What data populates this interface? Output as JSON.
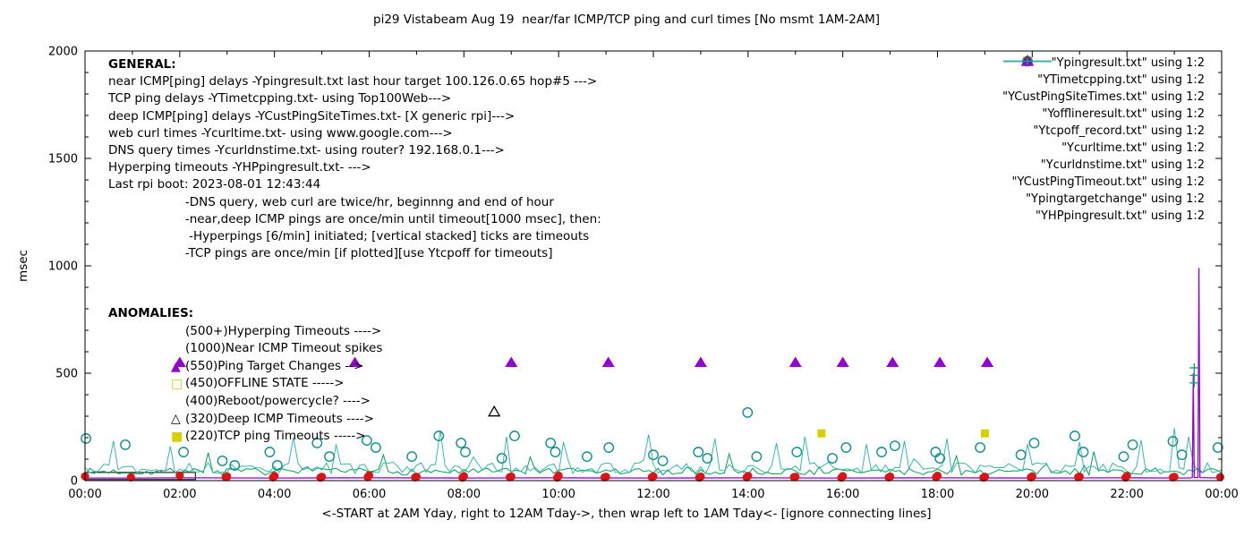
{
  "title": "pi29 Vistabeam Aug 19  near/far ICMP/TCP ping and curl times [No msmt 1AM-2AM]",
  "ylabel": "msec",
  "xlabel": "<-START at 2AM Yday, right to 12AM Tday->, then wrap left to 1AM Tday<- [ignore connecting lines]",
  "colors": {
    "near_icmp": "#9400d3",
    "tcp_ping": "#00a352",
    "deep_icmp": "#35b9b0",
    "curl": "#0f8f8f",
    "dns": "#dc1414",
    "yellow": "#d8cf00",
    "timeout_black": "#000000",
    "hyperping": "#12a096"
  },
  "legend": [
    {
      "label": "\"Ypingresult.txt\" using 1:2",
      "sample": "line",
      "color": "#9400d3"
    },
    {
      "label": "\"YTimetcpping.txt\" using 1:2",
      "sample": "line",
      "color": "#00a352"
    },
    {
      "label": "\"YCustPingSiteTimes.txt\" using 1:2",
      "sample": "line",
      "color": "#35b9b0"
    },
    {
      "label": "\"Yofflineresult.txt\" using 1:2",
      "sample": "sq-open",
      "color": "#d8cf00"
    },
    {
      "label": "\"Ytcpoff_record.txt\" using 1:2",
      "sample": "sq-filled",
      "color": "#d8cf00"
    },
    {
      "label": "\"Ycurltime.txt\" using 1:2",
      "sample": "circle-open",
      "color": "#0f8f8f"
    },
    {
      "label": "\"Ycurldnstime.txt\" using 1:2",
      "sample": "circle-filled",
      "color": "#dc1414"
    },
    {
      "label": "\"YCustPingTimeout.txt\" using 1:2",
      "sample": "tri-open",
      "color": "#000000"
    },
    {
      "label": "\"Ypingtargetchange\" using 1:2",
      "sample": "tri-filled",
      "color": "#9400d3"
    },
    {
      "label": "\"YHPpingresult.txt\" using 1:2",
      "sample": "plus",
      "color": "#12a096"
    }
  ],
  "annotations": {
    "general_lines": [
      "GENERAL:",
      "near ICMP[ping] delays -Ypingresult.txt last hour target 100.126.0.65 hop#5 --->",
      "TCP ping delays -YTimetcpping.txt- using Top100Web--->",
      "deep ICMP[ping] delays -YCustPingSiteTimes.txt- [X generic rpi]--->",
      "web curl times -Ycurltime.txt- using www.google.com--->",
      "DNS query times -Ycurldnstime.txt- using router? 192.168.0.1--->",
      "Hyperping timeouts -YHPpingresult.txt- --->",
      "Last rpi boot: 2023-08-01 12:43:44",
      "                    -DNS query, web curl are twice/hr, beginnng and end of hour",
      "                    -near,deep ICMP pings are once/min until timeout[1000 msec], then:",
      "                     -Hyperpings [6/min] initiated; [vertical stacked] ticks are timeouts",
      "                    -TCP pings are once/min [if plotted][use Ytcpoff for timeouts]"
    ],
    "anomalies_lines": [
      {
        "text": "ANOMALIES:",
        "header": true
      },
      {
        "text": "(500+)Hyperping Timeouts ---->",
        "marker": "",
        "marker_color": ""
      },
      {
        "text": "(1000)Near ICMP Timeout spikes",
        "marker": "",
        "marker_color": ""
      },
      {
        "text": "(550)Ping Target Changes -->",
        "marker": "tri-filled",
        "marker_color": "#9400d3"
      },
      {
        "text": "(450)OFFLINE STATE ----->",
        "marker": "sq-open",
        "marker_color": "#d8cf00"
      },
      {
        "text": "(400)Reboot/powercycle? ---->",
        "marker": "",
        "marker_color": ""
      },
      {
        "text": "(320)Deep ICMP Timeouts ---->",
        "marker": "tri-open",
        "marker_color": "#000000"
      },
      {
        "text": "(220)TCP ping Timeouts ----->",
        "marker": "sq-filled",
        "marker_color": "#d8cf00"
      }
    ]
  },
  "chart_data": {
    "type": "line",
    "x_range": [
      0,
      24
    ],
    "y_range": [
      0,
      2000
    ],
    "x_tick_values": [
      0,
      2,
      4,
      6,
      8,
      10,
      12,
      14,
      16,
      18,
      20,
      22,
      24
    ],
    "x_tick_labels": [
      "00:00",
      "02:00",
      "04:00",
      "06:00",
      "08:00",
      "10:00",
      "12:00",
      "14:00",
      "16:00",
      "18:00",
      "20:00",
      "22:00",
      "00:00"
    ],
    "y_tick_values": [
      0,
      500,
      1000,
      1500,
      2000
    ],
    "y_tick_labels": [
      "0",
      "500",
      "1000",
      "1500",
      "2000"
    ],
    "x_minor_step": 1,
    "y_minor_step": 100,
    "series": [
      {
        "id": "no-msmt-gap-box",
        "type": "box",
        "color": "#000000",
        "x": [
          0,
          2.33
        ],
        "y": [
          5,
          38
        ]
      },
      {
        "id": "tcp-ping-line",
        "label": "YTimetcpping.txt",
        "type": "noise",
        "color": "#00a352",
        "x_start": 0,
        "x_end": 24,
        "step": 0.1,
        "base": 42,
        "jitter": 16,
        "min": 26,
        "seed": 7,
        "spikes": [
          [
            2.6,
            130
          ],
          [
            6.3,
            120
          ],
          [
            9.4,
            110
          ],
          [
            13.6,
            125
          ],
          [
            18.4,
            115
          ],
          [
            21.3,
            135
          ]
        ]
      },
      {
        "id": "deep-icmp-line",
        "label": "YCustPingSiteTimes.txt",
        "type": "noise",
        "color": "#35b9b0",
        "x_start": 0,
        "x_end": 24,
        "step": 0.1,
        "base": 58,
        "jitter": 26,
        "min": 30,
        "seed": 13,
        "spikes": [
          [
            0.55,
            185
          ],
          [
            1.8,
            160
          ],
          [
            4.4,
            200
          ],
          [
            5.3,
            170
          ],
          [
            7.5,
            235
          ],
          [
            8.9,
            205
          ],
          [
            10.1,
            180
          ],
          [
            11.9,
            215
          ],
          [
            13.3,
            195
          ],
          [
            14.6,
            175
          ],
          [
            15.2,
            205
          ],
          [
            16.5,
            170
          ],
          [
            17.3,
            185
          ],
          [
            18.2,
            195
          ],
          [
            19.9,
            170
          ],
          [
            21.0,
            180
          ],
          [
            22.3,
            190
          ],
          [
            23.0,
            245
          ],
          [
            23.3,
            205
          ]
        ]
      },
      {
        "id": "near-icmp-line",
        "label": "Ypingresult.txt",
        "type": "line",
        "color": "#9400d3",
        "points": [
          [
            0,
            12
          ],
          [
            1,
            12
          ],
          [
            2,
            13
          ],
          [
            4,
            12
          ],
          [
            6,
            13
          ],
          [
            8,
            12
          ],
          [
            10,
            13
          ],
          [
            12,
            12
          ],
          [
            14,
            13
          ],
          [
            16,
            12
          ],
          [
            18,
            13
          ],
          [
            20,
            12
          ],
          [
            22,
            13
          ],
          [
            23.3,
            12
          ],
          [
            23.38,
            14
          ],
          [
            23.4,
            500
          ],
          [
            23.42,
            14
          ],
          [
            23.5,
            14
          ],
          [
            23.52,
            990
          ],
          [
            23.54,
            14
          ],
          [
            24,
            12
          ]
        ]
      },
      {
        "id": "curl-times",
        "label": "Ycurltime.txt",
        "type": "points",
        "marker": "circle-open",
        "color": "#0f8f8f",
        "points": [
          [
            0.02,
            196
          ],
          [
            0.85,
            167
          ],
          [
            2.08,
            133
          ],
          [
            2.9,
            92
          ],
          [
            3.16,
            71
          ],
          [
            3.9,
            133
          ],
          [
            4.06,
            71
          ],
          [
            4.9,
            175
          ],
          [
            5.16,
            112
          ],
          [
            5.95,
            187
          ],
          [
            6.14,
            154
          ],
          [
            6.9,
            112
          ],
          [
            7.47,
            208
          ],
          [
            7.94,
            175
          ],
          [
            8.03,
            133
          ],
          [
            8.8,
            104
          ],
          [
            9.07,
            208
          ],
          [
            9.83,
            175
          ],
          [
            9.93,
            133
          ],
          [
            10.6,
            112
          ],
          [
            11.06,
            154
          ],
          [
            12.0,
            120
          ],
          [
            12.2,
            92
          ],
          [
            12.95,
            133
          ],
          [
            13.14,
            104
          ],
          [
            13.99,
            317
          ],
          [
            14.18,
            112
          ],
          [
            15.03,
            133
          ],
          [
            15.78,
            104
          ],
          [
            16.07,
            154
          ],
          [
            16.82,
            133
          ],
          [
            17.1,
            162
          ],
          [
            17.96,
            133
          ],
          [
            18.05,
            104
          ],
          [
            18.9,
            154
          ],
          [
            19.76,
            120
          ],
          [
            20.04,
            175
          ],
          [
            20.9,
            208
          ],
          [
            21.08,
            133
          ],
          [
            21.93,
            112
          ],
          [
            22.12,
            167
          ],
          [
            22.97,
            183
          ],
          [
            23.16,
            120
          ],
          [
            23.92,
            154
          ]
        ]
      },
      {
        "id": "dns-times",
        "label": "Ycurldnstime.txt",
        "type": "points",
        "marker": "circle-filled",
        "color": "#dc1414",
        "points": [
          [
            0,
            20
          ],
          [
            0.97,
            15
          ],
          [
            2,
            24
          ],
          [
            2.97,
            16
          ],
          [
            3,
            19
          ],
          [
            3.97,
            15
          ],
          [
            4,
            22
          ],
          [
            4.97,
            14
          ],
          [
            5,
            18
          ],
          [
            5.97,
            16
          ],
          [
            6,
            25
          ],
          [
            6.97,
            15
          ],
          [
            7,
            18
          ],
          [
            7.97,
            14
          ],
          [
            8,
            21
          ],
          [
            8.97,
            16
          ],
          [
            9,
            19
          ],
          [
            9.97,
            14
          ],
          [
            10,
            23
          ],
          [
            10.97,
            15
          ],
          [
            11,
            18
          ],
          [
            11.97,
            16
          ],
          [
            12,
            20
          ],
          [
            12.97,
            14
          ],
          [
            13,
            19
          ],
          [
            13.97,
            15
          ],
          [
            14,
            22
          ],
          [
            14.97,
            16
          ],
          [
            15,
            18
          ],
          [
            15.97,
            14
          ],
          [
            16,
            21
          ],
          [
            16.97,
            15
          ],
          [
            17,
            19
          ],
          [
            17.97,
            16
          ],
          [
            18,
            23
          ],
          [
            18.97,
            14
          ],
          [
            19,
            18
          ],
          [
            19.97,
            15
          ],
          [
            20,
            20
          ],
          [
            20.97,
            16
          ],
          [
            21,
            19
          ],
          [
            21.97,
            14
          ],
          [
            22,
            22
          ],
          [
            22.97,
            15
          ],
          [
            23,
            18
          ],
          [
            23.97,
            16
          ]
        ]
      },
      {
        "id": "offline-state",
        "label": "Yofflineresult.txt",
        "type": "points",
        "marker": "sq-open",
        "color": "#d8cf00",
        "points": []
      },
      {
        "id": "tcp-off-record",
        "label": "Ytcpoff_record.txt",
        "type": "points",
        "marker": "sq-filled",
        "color": "#d8cf00",
        "points": [
          [
            15.55,
            220
          ],
          [
            19.0,
            220
          ]
        ]
      },
      {
        "id": "deep-icmp-timeouts",
        "label": "YCustPingTimeout.txt",
        "type": "points",
        "marker": "tri-open",
        "color": "#000000",
        "points": [
          [
            8.64,
            320
          ]
        ]
      },
      {
        "id": "ping-target-changes",
        "label": "Ypingtargetchange",
        "type": "points",
        "marker": "tri-filled",
        "color": "#9400d3",
        "points": [
          [
            2.0,
            550
          ],
          [
            5.7,
            550
          ],
          [
            9.0,
            550
          ],
          [
            11.05,
            550
          ],
          [
            13.0,
            550
          ],
          [
            15.0,
            550
          ],
          [
            16.0,
            550
          ],
          [
            17.05,
            550
          ],
          [
            18.05,
            550
          ],
          [
            19.05,
            550
          ]
        ]
      },
      {
        "id": "hyperping-timeouts",
        "label": "YHPpingresult.txt",
        "type": "points",
        "marker": "plus",
        "color": "#12a096",
        "points": [
          [
            23.42,
            455
          ],
          [
            23.42,
            490
          ],
          [
            23.42,
            525
          ]
        ]
      }
    ]
  }
}
